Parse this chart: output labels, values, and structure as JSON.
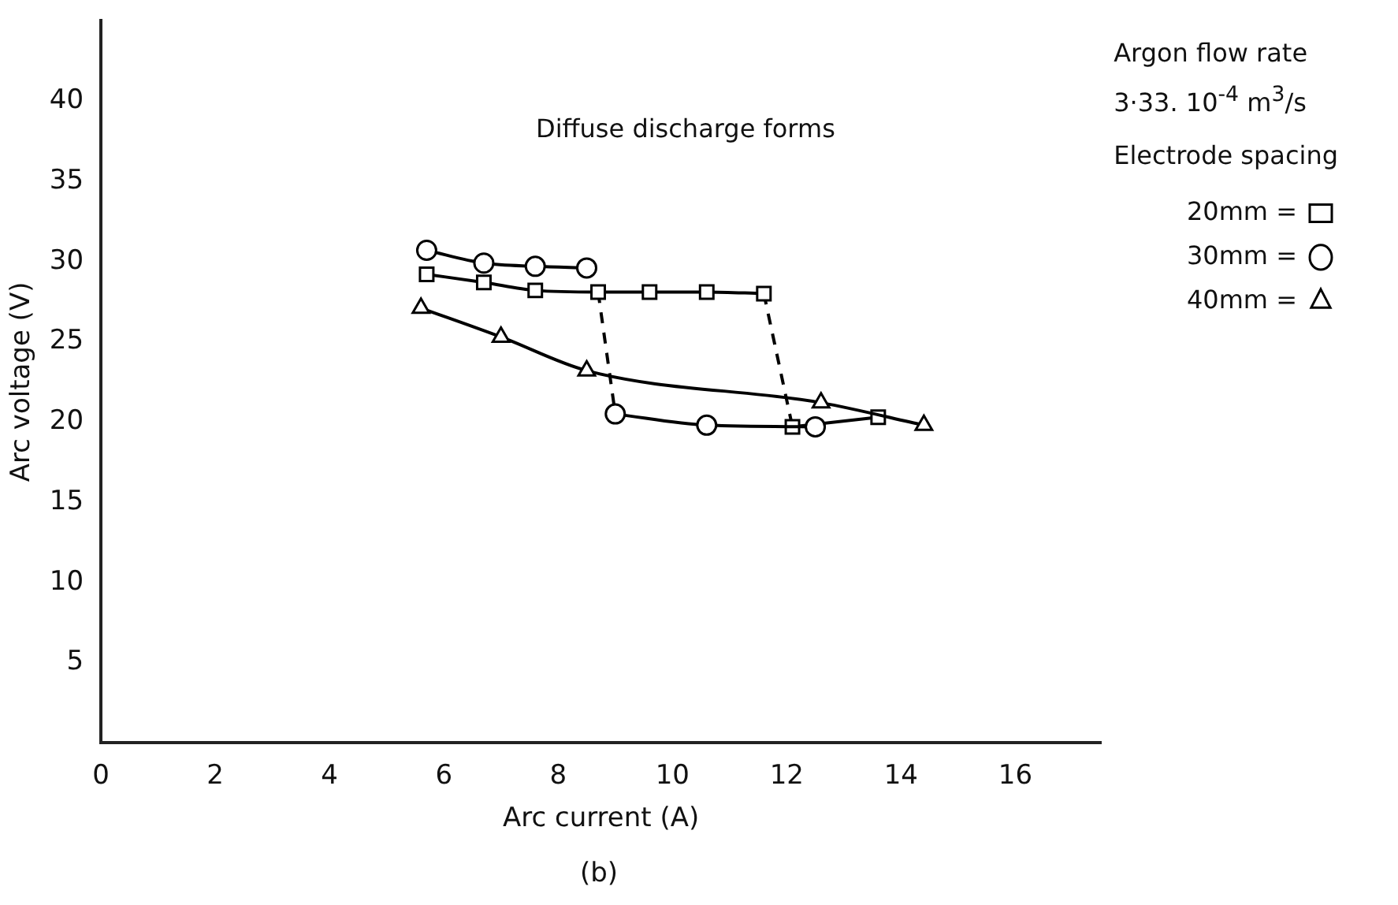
{
  "chart_data": {
    "type": "line",
    "xlabel": "Arc current (A)",
    "ylabel": "Arc voltage (V)",
    "legend_title": "Electrode spacing",
    "legend": "top right",
    "grid": false,
    "xlim": [
      0,
      17.5
    ],
    "xticks": [
      0,
      2,
      4,
      6,
      8,
      10,
      12,
      14,
      16
    ],
    "ylim": [
      0,
      45
    ],
    "yticks": [
      5,
      10,
      15,
      20,
      25,
      30,
      35,
      40
    ],
    "annotations": [
      "Diffuse discharge forms",
      "Argon flow rate",
      "3·33. 10$^{-4}$ m$^{3}$/s",
      "(b)"
    ],
    "series": [
      {
        "name": "20mm =",
        "color": "#000000",
        "marker": "square",
        "line_style": "solid",
        "x": [
          5.7,
          6.7,
          7.6,
          8.7,
          9.6,
          10.6,
          11.6
        ],
        "values": [
          29.2,
          28.7,
          28.2,
          28.1,
          28.1,
          28.1,
          28.0
        ]
      },
      {
        "name": "30mm =",
        "color": "#000000",
        "marker": "circle",
        "line_style": "solid",
        "x": [
          5.7,
          6.7,
          7.6,
          8.5
        ],
        "values": [
          30.7,
          29.9,
          29.7,
          29.6
        ]
      },
      {
        "name": "40mm =",
        "color": "#000000",
        "marker": "triangle",
        "line_style": "solid",
        "x": [
          5.6,
          7.0,
          8.5,
          12.6,
          14.4
        ],
        "values": [
          27.1,
          25.3,
          23.2,
          21.2,
          19.8
        ]
      },
      {
        "color": "#000000",
        "marker": "circle",
        "line_style": "solid",
        "x": [
          9.0,
          10.6,
          12.5
        ],
        "values": [
          20.5,
          19.8,
          19.7
        ]
      },
      {
        "color": "#000000",
        "marker": "square",
        "line_style": "solid",
        "x": [
          12.1,
          13.6
        ],
        "values": [
          19.7,
          20.3
        ]
      },
      {
        "color": "#000000",
        "marker": "none",
        "line_style": "dashed",
        "x": [
          8.7,
          9.0
        ],
        "values": [
          28.1,
          20.5
        ]
      },
      {
        "color": "#000000",
        "marker": "none",
        "line_style": "dashed",
        "x": [
          11.6,
          12.1
        ],
        "values": [
          28.0,
          19.7
        ]
      }
    ]
  }
}
